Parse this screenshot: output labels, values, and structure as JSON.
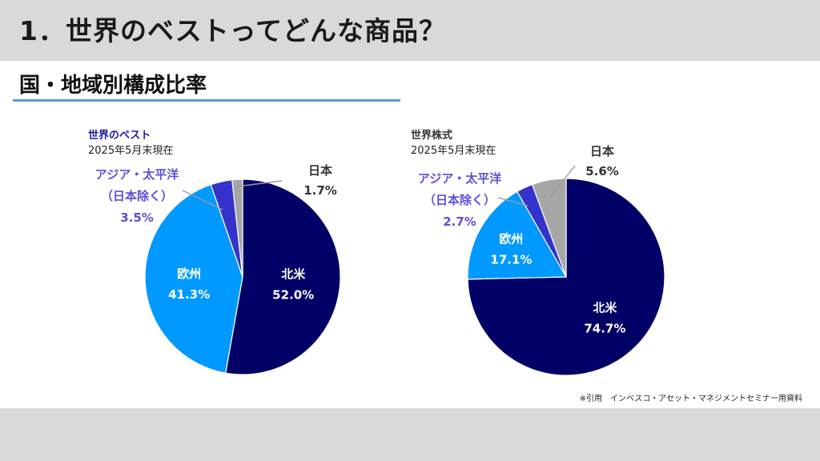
{
  "header": {
    "title": "1．世界のベストってどんな商品？"
  },
  "section": {
    "subtitle": "国・地域別構成比率"
  },
  "colors": {
    "north_america": "#000066",
    "europe": "#0099ff",
    "asia_pacific": "#3333cc",
    "japan": "#a6a6a6",
    "label_dark": "#333333",
    "label_purple": "#5b4fd6",
    "title_blue": "#1a1aa6",
    "white": "#ffffff"
  },
  "chart_data": [
    {
      "type": "pie",
      "title": "世界のベスト",
      "subtitle": "2025年5月末現在",
      "slices": [
        {
          "key": "north_america",
          "name": "北米",
          "value": 52.0,
          "value_label": "52.0%"
        },
        {
          "key": "europe",
          "name": "欧州",
          "value": 41.3,
          "value_label": "41.3%"
        },
        {
          "key": "asia_pacific",
          "name_line1": "アジア・太平洋",
          "name_line2": "（日本除く）",
          "value": 3.5,
          "value_label": "3.5%"
        },
        {
          "key": "japan",
          "name": "日本",
          "value": 1.7,
          "value_label": "1.7%"
        }
      ]
    },
    {
      "type": "pie",
      "title": "世界株式",
      "subtitle": "2025年5月末現在",
      "slices": [
        {
          "key": "north_america",
          "name": "北米",
          "value": 74.7,
          "value_label": "74.7%"
        },
        {
          "key": "europe",
          "name": "欧州",
          "value": 17.1,
          "value_label": "17.1%"
        },
        {
          "key": "asia_pacific",
          "name_line1": "アジア・太平洋",
          "name_line2": "（日本除く）",
          "value": 2.7,
          "value_label": "2.7%"
        },
        {
          "key": "japan",
          "name": "日本",
          "value": 5.6,
          "value_label": "5.6%"
        }
      ]
    }
  ],
  "footer": {
    "source_note": "※引用　インベスコ・アセット・マネジメントセミナー用資料"
  }
}
